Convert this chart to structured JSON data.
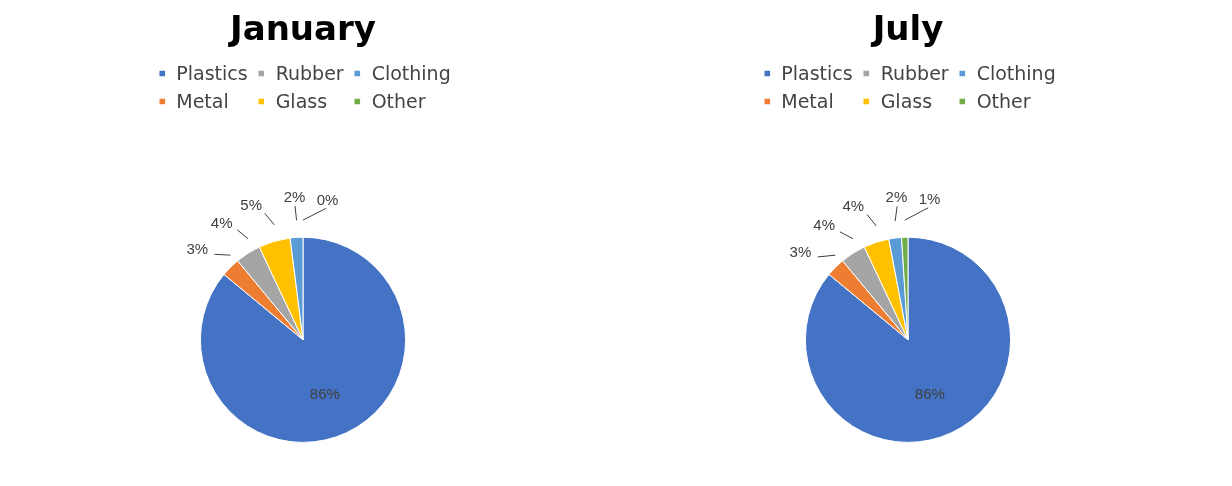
{
  "chart_data": [
    {
      "type": "pie",
      "title": "January",
      "categories": [
        "Plastics",
        "Metal",
        "Rubber",
        "Glass",
        "Clothing",
        "Other"
      ],
      "values": [
        86,
        3,
        4,
        5,
        2,
        0
      ],
      "value_labels": [
        "86%",
        "3%",
        "4%",
        "5%",
        "2%",
        "0%"
      ],
      "colors": [
        "#4472c4",
        "#ed7d31",
        "#a5a5a5",
        "#ffc000",
        "#5b9bd5",
        "#70ad47"
      ],
      "legend": "top"
    },
    {
      "type": "pie",
      "title": "July",
      "categories": [
        "Plastics",
        "Metal",
        "Rubber",
        "Glass",
        "Clothing",
        "Other"
      ],
      "values": [
        86,
        3,
        4,
        4,
        2,
        1
      ],
      "value_labels": [
        "86%",
        "3%",
        "4%",
        "4%",
        "2%",
        "1%"
      ],
      "colors": [
        "#4472c4",
        "#ed7d31",
        "#a5a5a5",
        "#ffc000",
        "#5b9bd5",
        "#70ad47"
      ],
      "legend": "top"
    }
  ]
}
